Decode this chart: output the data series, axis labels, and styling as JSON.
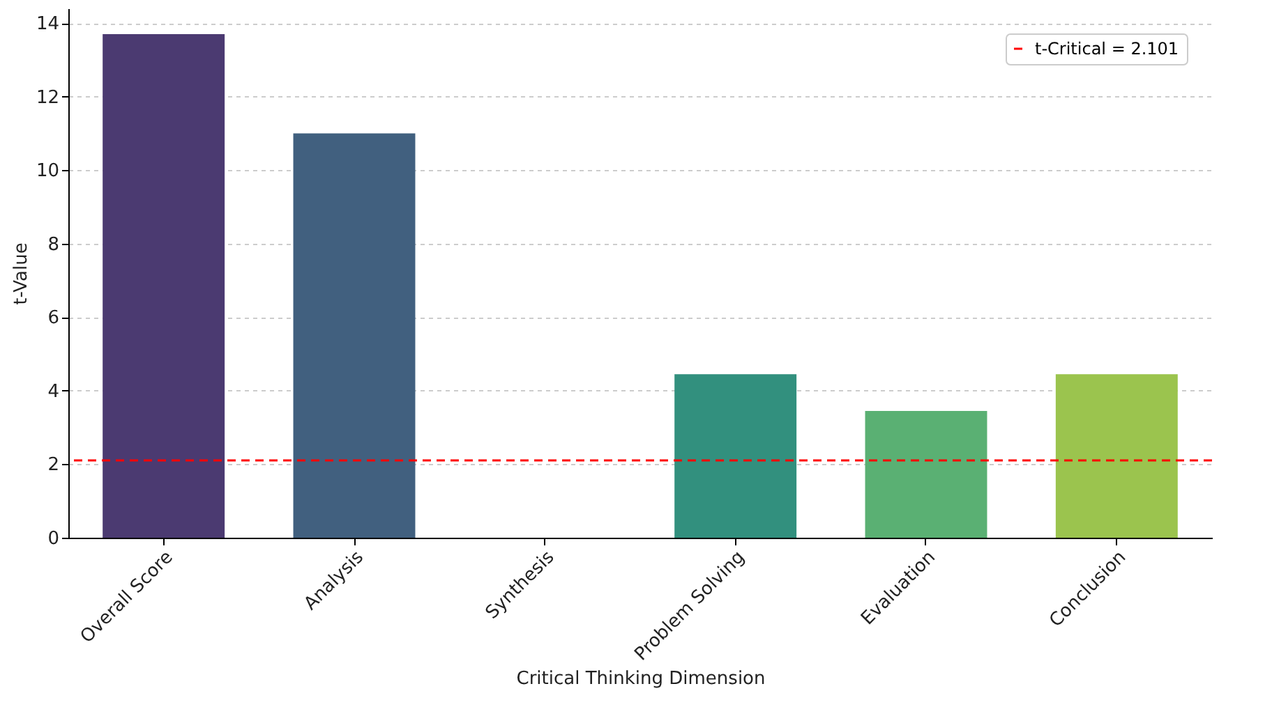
{
  "chart_data": {
    "type": "bar",
    "xlabel": "Critical Thinking Dimension",
    "ylabel": "t-Value",
    "categories": [
      "Overall Score",
      "Analysis",
      "Synthesis",
      "Problem Solving",
      "Evaluation",
      "Conclusion"
    ],
    "values": [
      13.7,
      11.0,
      null,
      4.45,
      3.45,
      4.45
    ],
    "colors": [
      "#4b3a71",
      "#41607f",
      "#2f7d86",
      "#32907e",
      "#5ab073",
      "#9bc44e"
    ],
    "ylim": [
      0,
      14.4
    ],
    "yticks": [
      0,
      2,
      4,
      6,
      8,
      10,
      12,
      14
    ],
    "grid": "y",
    "legend": "top right",
    "ref_lines": [
      {
        "axis": "y",
        "value": 2.101,
        "label": "t-Critical = 2.101",
        "color": "#ff0000",
        "line_style": "dashed"
      }
    ]
  }
}
